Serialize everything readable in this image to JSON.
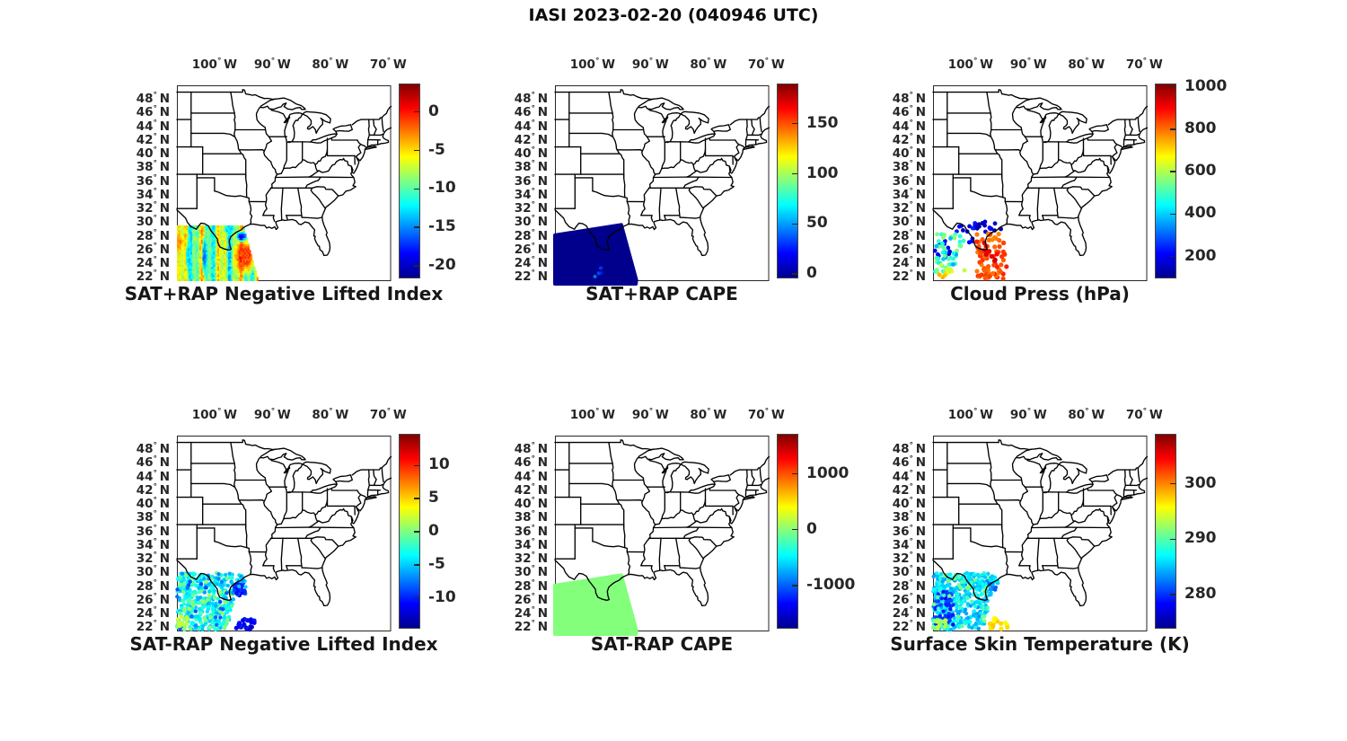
{
  "chart_data": {
    "type": "scatter",
    "figure_title": "IASI 2023-02-20 (040946 UTC)",
    "description": "Six map panels of IASI satellite sounding retrievals over the central/eastern United States; data swath covers southern Texas and the western Gulf of Mexico (~22-31N, 93-106.5W).",
    "colormap": "jet",
    "map": {
      "lon_range": [
        -106.5,
        -69.5
      ],
      "lat_range": [
        21.4,
        50.0
      ],
      "lon_ticks": [
        {
          "value": -100,
          "label": "100° W"
        },
        {
          "value": -90,
          "label": "90° W"
        },
        {
          "value": -80,
          "label": "80° W"
        },
        {
          "value": -70,
          "label": "70° W"
        }
      ],
      "lat_ticks": [
        {
          "value": 48,
          "label": "48° N"
        },
        {
          "value": 46,
          "label": "46° N"
        },
        {
          "value": 44,
          "label": "44° N"
        },
        {
          "value": 42,
          "label": "42° N"
        },
        {
          "value": 40,
          "label": "40° N"
        },
        {
          "value": 38,
          "label": "38° N"
        },
        {
          "value": 36,
          "label": "36° N"
        },
        {
          "value": 34,
          "label": "34° N"
        },
        {
          "value": 32,
          "label": "32° N"
        },
        {
          "value": 30,
          "label": "30° N"
        },
        {
          "value": 28,
          "label": "28° N"
        },
        {
          "value": 26,
          "label": "26° N"
        },
        {
          "value": 24,
          "label": "24° N"
        },
        {
          "value": 22,
          "label": "22° N"
        }
      ]
    },
    "swath_polygon": [
      [
        -106.5,
        28.1
      ],
      [
        -95.05,
        29.62
      ],
      [
        -92.45,
        21.6
      ],
      [
        -92.5,
        21.0
      ],
      [
        -106.5,
        21.0
      ]
    ],
    "mass_polygon": [
      [
        -106.5,
        28.05
      ],
      [
        -96.6,
        29.95
      ],
      [
        -95.9,
        28.7
      ],
      [
        -97.9,
        21.65
      ],
      [
        -106.5,
        21.65
      ]
    ],
    "panels": [
      {
        "id": "sat-plus-rap-negative-lifted-index",
        "title": "SAT+RAP Negative Lifted Index",
        "colorbar": {
          "vmin": -21.4,
          "vmax": 3.7,
          "ticks": [
            {
              "value": 0,
              "label": "0"
            },
            {
              "value": -5,
              "label": "-5"
            },
            {
              "value": -10,
              "label": "-10"
            },
            {
              "value": -15,
              "label": "-15"
            },
            {
              "value": -20,
              "label": "-20"
            }
          ]
        },
        "summary": "Dense swath field, mostly -5 to -12 (yellow/green/cyan streaks), orange/red maximum near -95W 25N (~ -1), dark blue pocket near coast at -95.5W 27.8N (~ -18).",
        "data": {
          "kind": "field",
          "cell": [
            0.26,
            0.3
          ],
          "base": -8.3,
          "waves": [
            {
              "a": 3.0,
              "k": 1.9,
              "p": 0.0
            },
            {
              "a": 2.3,
              "k": 4.6,
              "p": 1.2
            }
          ],
          "noise": 1.7,
          "seed": 5,
          "blobs": [
            {
              "c": [
                -94.9,
                24.9
              ],
              "r": [
                2.4,
                3.0
              ],
              "v": -0.9,
              "spread": 1.6
            },
            {
              "c": [
                -106.3,
                27.0
              ],
              "r": [
                1.0,
                1.6
              ],
              "v": -3.0,
              "spread": 1.0
            },
            {
              "c": [
                -95.5,
                27.8
              ],
              "r": [
                0.95,
                0.95
              ],
              "v": -18.0,
              "spread": 1.5
            },
            {
              "c": [
                -97.6,
                28.9
              ],
              "r": [
                1.2,
                0.9
              ],
              "v": -12.5,
              "spread": 1.5
            },
            {
              "c": [
                -101.9,
                25.0
              ],
              "r": [
                0.55,
                3.2
              ],
              "v": -15.0,
              "spread": 1.5
            },
            {
              "c": [
                -104.7,
                24.8
              ],
              "r": [
                0.5,
                2.5
              ],
              "v": -13.0,
              "spread": 1.5
            }
          ],
          "clamp": [
            -21.2,
            3.5
          ]
        }
      },
      {
        "id": "sat-plus-rap-cape",
        "title": "SAT+RAP CAPE",
        "colorbar": {
          "vmin": -2.5,
          "vmax": 190,
          "ticks": [
            {
              "value": 150,
              "label": "150"
            },
            {
              "value": 100,
              "label": "100"
            },
            {
              "value": 50,
              "label": "50"
            },
            {
              "value": 0,
              "label": "0"
            }
          ]
        },
        "summary": "Entire swath uniformly ~0 J/kg (dark blue) with a few faint ~30 speckles near -99W 23-25N.",
        "data": {
          "kind": "fill",
          "value": 0,
          "speckles": [
            {
              "n": 5,
              "lon": [
                -99.6,
                -98.2
              ],
              "lat": [
                21.9,
                24.6
              ],
              "v": [
                25,
                50
              ],
              "r": 2.0,
              "seed": 7
            }
          ]
        }
      },
      {
        "id": "cloud-press-hpa",
        "title": "Cloud Press (hPa)",
        "colorbar": {
          "vmin": 105,
          "vmax": 1015,
          "ticks": [
            {
              "value": 1000,
              "label": "1000"
            },
            {
              "value": 800,
              "label": "800"
            },
            {
              "value": 600,
              "label": "600"
            },
            {
              "value": 400,
              "label": "400"
            },
            {
              "value": 200,
              "label": "200"
            }
          ]
        },
        "summary": "Sparse cloud-top pressure dots: blue band 130-260 hPa along swath top edge, green 470-580 hPa cluster in west, orange/red 780-960 hPa mass over the Gulf (-99 to -93W), few yellow 610-780 hPa dots near 22-24N.",
        "data": {
          "kind": "dots",
          "clusters": [
            {
              "n": 26,
              "lon": [
                -102.6,
                -94.6
              ],
              "lat": [
                28.55,
                30.1
              ],
              "v": [
                130,
                260
              ],
              "r": 2.4,
              "seed": 11
            },
            {
              "n": 10,
              "lon": [
                -106.3,
                -103.6
              ],
              "lat": [
                24.8,
                28.6
              ],
              "v": [
                150,
                280
              ],
              "r": 2.4,
              "seed": 12
            },
            {
              "n": 42,
              "lon": [
                -106.4,
                -101.2
              ],
              "lat": [
                22.6,
                28.7
              ],
              "v": [
                470,
                580
              ],
              "r": 2.4,
              "seed": 13
            },
            {
              "n": 10,
              "lon": [
                -106.2,
                -102.0
              ],
              "lat": [
                23.8,
                28.0
              ],
              "v": [
                360,
                460
              ],
              "r": 2.4,
              "seed": 14
            },
            {
              "n": 6,
              "lon": [
                -105.2,
                -100.8
              ],
              "lat": [
                22.4,
                24.3
              ],
              "v": [
                610,
                680
              ],
              "r": 2.4,
              "seed": 15
            },
            {
              "n": 6,
              "lon": [
                -105.9,
                -104.2
              ],
              "lat": [
                21.8,
                23.1
              ],
              "v": [
                690,
                780
              ],
              "r": 2.4,
              "seed": 16
            },
            {
              "n": 80,
              "lon": [
                -99.1,
                -93.2
              ],
              "lat": [
                21.7,
                28.8
              ],
              "v": [
                780,
                880
              ],
              "r": 2.6,
              "seed": 17,
              "clip": "swath"
            },
            {
              "n": 10,
              "lon": [
                -97.9,
                -95.1
              ],
              "lat": [
                23.6,
                27.2
              ],
              "v": [
                885,
                960
              ],
              "r": 2.6,
              "seed": 18
            },
            {
              "n": 3,
              "lon": [
                -100.3,
                -99.5
              ],
              "lat": [
                26.8,
                27.6
              ],
              "v": [
                190,
                260
              ],
              "r": 2.4,
              "seed": 19
            }
          ]
        }
      },
      {
        "id": "sat-minus-rap-negative-lifted-index",
        "title": "SAT-RAP Negative Lifted Index",
        "colorbar": {
          "vmin": -14.4,
          "vmax": 14.8,
          "ticks": [
            {
              "value": 10,
              "label": "10"
            },
            {
              "value": 5,
              "label": "5"
            },
            {
              "value": 0,
              "label": "0"
            },
            {
              "value": -5,
              "label": "-5"
            },
            {
              "value": -10,
              "label": "-10"
            }
          ]
        },
        "summary": "Dense cyan dot mass (-6 to -2) over the swath, green speckles (~0), yellow-green lower-left (~+2), dark blue clump -12 to -10 at 22-23N east of the mass, blue dots near the upper Texas coast.",
        "data": {
          "kind": "dots",
          "clusters": [
            {
              "n": 380,
              "poly": "mass",
              "v": [
                -5.8,
                -1.6
              ],
              "r": 2.2,
              "seed": 21
            },
            {
              "n": 55,
              "poly": "mass",
              "v": [
                -1.2,
                1.6
              ],
              "r": 2.2,
              "seed": 22
            },
            {
              "n": 30,
              "poly": "mass",
              "v": [
                -9.0,
                -6.2
              ],
              "r": 2.2,
              "seed": 23
            },
            {
              "n": 16,
              "lon": [
                -106.4,
                -104.4
              ],
              "lat": [
                21.8,
                23.6
              ],
              "v": [
                0.5,
                3.0
              ],
              "r": 2.2,
              "seed": 24
            },
            {
              "n": 26,
              "lon": [
                -96.5,
                -94.5
              ],
              "lat": [
                26.6,
                28.7
              ],
              "v": [
                -11,
                -8
              ],
              "r": 2.3,
              "seed": 27
            },
            {
              "n": 20,
              "lon": [
                -96.4,
                -92.9
              ],
              "lat": [
                21.65,
                23.3
              ],
              "v": [
                -12.5,
                -9.5
              ],
              "r": 2.6,
              "seed": 25
            },
            {
              "n": 14,
              "lon": [
                -95.9,
                -93.4
              ],
              "lat": [
                27.9,
                29.9
              ],
              "v": [
                -7.5,
                -4.0
              ],
              "r": 2.2,
              "seed": 26,
              "clip": "swath"
            }
          ]
        }
      },
      {
        "id": "sat-minus-rap-cape",
        "title": "SAT-RAP CAPE",
        "colorbar": {
          "vmin": -1745,
          "vmax": 1720,
          "ticks": [
            {
              "value": 1000,
              "label": "1000"
            },
            {
              "value": 0,
              "label": "0"
            },
            {
              "value": -1000,
              "label": "-1000"
            }
          ]
        },
        "summary": "Entire swath uniformly ~0 J/kg difference (light green).",
        "data": {
          "kind": "fill",
          "value": 0,
          "speckles": []
        }
      },
      {
        "id": "surface-skin-temperature-k",
        "title": "Surface Skin Temperature (K)",
        "colorbar": {
          "vmin": 274.2,
          "vmax": 309,
          "ticks": [
            {
              "value": 300,
              "label": "300"
            },
            {
              "value": 290,
              "label": "290"
            },
            {
              "value": 280,
              "label": "280"
            }
          ]
        },
        "summary": "Dense cyan mass 283-289 K, darker blue streaks 278-283 K lower-left, green 289-292 K speckles, yellow-green 291-295 K along bottom-left edge, yellow 295-298 K clump at 21.7-23.3N / 93-97W.",
        "data": {
          "kind": "dots",
          "clusters": [
            {
              "n": 380,
              "poly": "mass",
              "v": [
                283.5,
                288.5
              ],
              "r": 2.2,
              "seed": 31
            },
            {
              "n": 60,
              "lon": [
                -106.3,
                -103.0
              ],
              "lat": [
                22.4,
                27.2
              ],
              "v": [
                278.5,
                282.5
              ],
              "r": 2.2,
              "seed": 32
            },
            {
              "n": 45,
              "poly": "mass",
              "v": [
                289,
                292
              ],
              "r": 2.2,
              "seed": 33
            },
            {
              "n": 22,
              "lon": [
                -106.5,
                -104.2
              ],
              "lat": [
                21.7,
                23.1
              ],
              "v": [
                291,
                294.5
              ],
              "r": 2.2,
              "seed": 34
            },
            {
              "n": 14,
              "lon": [
                -96.7,
                -93.3
              ],
              "lat": [
                21.7,
                23.3
              ],
              "v": [
                295.5,
                298
              ],
              "r": 2.6,
              "seed": 35
            },
            {
              "n": 14,
              "lon": [
                -97.5,
                -95.6
              ],
              "lat": [
                27.3,
                28.8
              ],
              "v": [
                281,
                284
              ],
              "r": 2.2,
              "seed": 37
            },
            {
              "n": 22,
              "lon": [
                -98.6,
                -95.3
              ],
              "lat": [
                28.2,
                30.05
              ],
              "v": [
                284,
                287.5
              ],
              "r": 2.2,
              "seed": 36,
              "clip": "swath"
            }
          ]
        }
      }
    ],
    "layout_hints": {
      "grid": "2 rows x 3 columns",
      "colorbar_position": "right of each panel",
      "gridlines": false
    }
  }
}
